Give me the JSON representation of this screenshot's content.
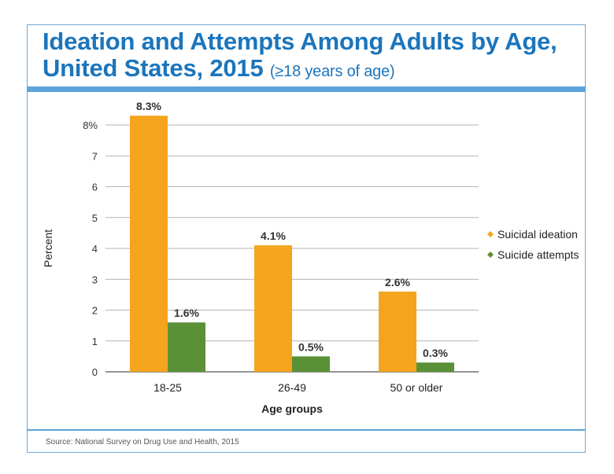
{
  "header": {
    "title_main": "Ideation and Attempts Among Adults by Age, United States, 2015",
    "title_sub": "(≥18 years of age)"
  },
  "footer": {
    "source": "Source: National Survey on Drug Use and Health, 2015"
  },
  "colors": {
    "ideation": "#f5a41d",
    "attempts": "#5a9137",
    "title": "#1b75bc",
    "rule": "#5ba4db"
  },
  "chart_data": {
    "type": "bar",
    "categories": [
      "18-25",
      "26-49",
      "50 or older"
    ],
    "series": [
      {
        "name": "Suicidal ideation",
        "values": [
          8.3,
          4.1,
          2.6
        ],
        "labels": [
          "8.3%",
          "4.1%",
          "2.6%"
        ],
        "color": "#f5a41d"
      },
      {
        "name": "Suicide attempts",
        "values": [
          1.6,
          0.5,
          0.3
        ],
        "labels": [
          "1.6%",
          "0.5%",
          "0.3%"
        ],
        "color": "#5a9137"
      }
    ],
    "ylim": [
      0,
      8
    ],
    "yticks": [
      "0",
      "1",
      "2",
      "3",
      "4",
      "5",
      "6",
      "7",
      "8%"
    ],
    "ylabel": "Percent",
    "xlabel": "Age groups",
    "grid": true,
    "legend_position": "right"
  }
}
